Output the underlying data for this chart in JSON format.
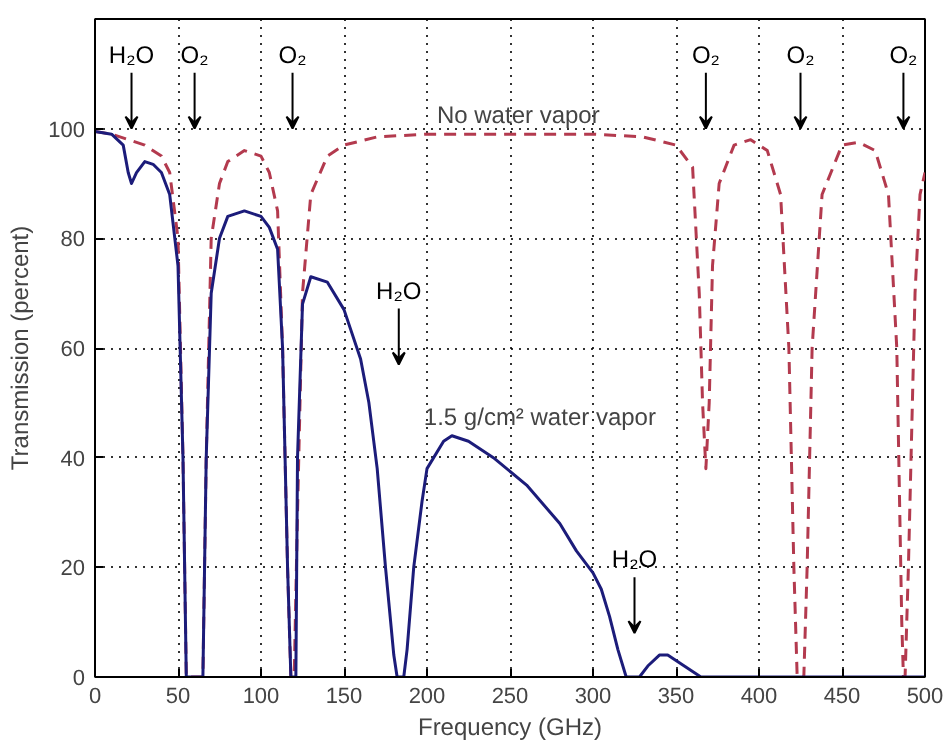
{
  "chart_data": {
    "type": "line",
    "xlabel": "Frequency (GHz)",
    "ylabel": "Transmission (percent)",
    "xlim": [
      0,
      500
    ],
    "ylim": [
      0,
      120
    ],
    "xticks": [
      0,
      50,
      100,
      150,
      200,
      250,
      300,
      350,
      400,
      450,
      500
    ],
    "yticks": [
      0,
      20,
      40,
      60,
      80,
      100
    ],
    "grid": true,
    "legend": false,
    "marker": "none",
    "series": [
      {
        "name": "No water vapor",
        "color": "#b33a4e",
        "line_style": "dashed",
        "x": [
          0,
          10,
          20,
          30,
          40,
          45,
          50,
          53,
          55,
          60,
          65,
          67,
          70,
          75,
          80,
          90,
          100,
          105,
          110,
          113,
          116,
          118,
          119,
          120,
          122,
          125,
          130,
          140,
          150,
          170,
          200,
          300,
          330,
          350,
          360,
          364,
          366,
          368,
          370,
          372,
          376,
          385,
          395,
          405,
          413,
          418,
          421,
          423,
          425,
          427,
          429,
          432,
          438,
          450,
          460,
          470,
          478,
          483,
          486,
          487,
          488,
          490,
          494,
          497,
          500
        ],
        "values": [
          99.5,
          99,
          98,
          97,
          95,
          92,
          80,
          40,
          0,
          0,
          0,
          40,
          80,
          90,
          94,
          96,
          95,
          92,
          85,
          60,
          20,
          0,
          0,
          0,
          30,
          70,
          88,
          95,
          97,
          98.5,
          99,
          99,
          98.5,
          97,
          93,
          70,
          50,
          38,
          50,
          75,
          90,
          97,
          98,
          96,
          88,
          60,
          20,
          0,
          0,
          0,
          20,
          60,
          88,
          97,
          97.5,
          96,
          88,
          60,
          10,
          0,
          0,
          20,
          70,
          88,
          92
        ]
      },
      {
        "name": "1.5 g/cm² water vapor",
        "color": "#1c1c7a",
        "line_style": "solid",
        "x": [
          0,
          10,
          17,
          20,
          22,
          25,
          30,
          35,
          40,
          45,
          50,
          53,
          55,
          65,
          67,
          70,
          75,
          80,
          90,
          100,
          105,
          110,
          113,
          116,
          118,
          121,
          122,
          125,
          130,
          140,
          150,
          160,
          165,
          170,
          175,
          180,
          182,
          186,
          188,
          192,
          197,
          200,
          210,
          215,
          225,
          240,
          260,
          280,
          290,
          300,
          305,
          310,
          315,
          320,
          328,
          333,
          340,
          345,
          350,
          360,
          365,
          500
        ],
        "values": [
          99.5,
          99,
          97,
          92,
          90,
          92,
          94,
          93.5,
          92,
          88,
          75,
          40,
          0,
          0,
          40,
          70,
          80,
          84,
          85,
          84,
          82,
          78,
          60,
          20,
          0,
          0,
          40,
          68,
          73,
          72,
          67,
          58,
          50,
          38,
          20,
          4,
          0,
          0,
          5,
          20,
          32,
          38,
          43,
          44,
          43,
          40,
          35,
          28,
          23,
          19,
          16,
          11,
          5,
          0,
          0,
          2,
          4,
          4,
          3,
          1,
          0,
          0
        ]
      }
    ],
    "annotations": [
      "H₂O",
      "O₂",
      "O₂",
      "H₂O",
      "H₂O",
      "O₂",
      "O₂",
      "O₂"
    ]
  }
}
